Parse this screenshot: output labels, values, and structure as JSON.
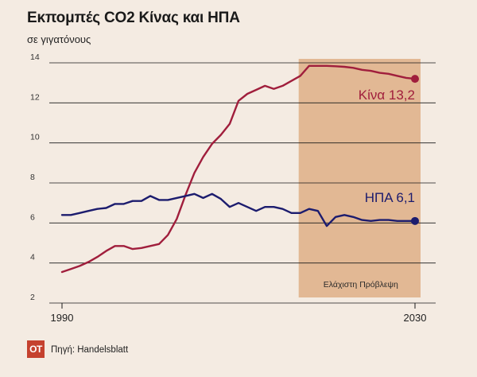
{
  "title": "Εκπομπές CO2 Κίνας και ΗΠΑ",
  "subtitle": "σε γιγατόνους",
  "source": "Πηγή: Handelsblatt",
  "logo": "ΟΤ",
  "colors": {
    "china": "#a01e3c",
    "usa": "#1c1c6e",
    "forecast_band": "#e2b894",
    "grid": "#1a1a1a"
  },
  "chart_data": {
    "type": "line",
    "ylim": [
      2,
      14
    ],
    "yticks": [
      2,
      4,
      6,
      8,
      10,
      12,
      14
    ],
    "xlim": [
      1990,
      2030
    ],
    "xtick_labels": [
      "1990",
      "2030"
    ],
    "forecast_label": "Ελάχιστη Πρόβλεψη",
    "forecast_range": [
      2017,
      2030
    ],
    "series": [
      {
        "name": "Κίνα",
        "end_label": "Κίνα 13,2",
        "color": "#a01e3c",
        "x": [
          1990,
          1991,
          1992,
          1993,
          1994,
          1995,
          1996,
          1997,
          1998,
          1999,
          2000,
          2001,
          2002,
          2003,
          2004,
          2005,
          2006,
          2007,
          2008,
          2009,
          2010,
          2011,
          2012,
          2013,
          2014,
          2015,
          2016,
          2017,
          2018,
          2019,
          2020,
          2021,
          2022,
          2023,
          2024,
          2025,
          2026,
          2027,
          2028,
          2029,
          2030
        ],
        "values": [
          3.55,
          3.7,
          3.85,
          4.05,
          4.3,
          4.6,
          4.85,
          4.85,
          4.7,
          4.75,
          4.85,
          4.95,
          5.4,
          6.2,
          7.4,
          8.5,
          9.3,
          9.95,
          10.4,
          10.95,
          12.1,
          12.45,
          12.65,
          12.85,
          12.7,
          12.85,
          13.1,
          13.35,
          13.85,
          13.85,
          13.85,
          13.83,
          13.8,
          13.75,
          13.65,
          13.6,
          13.5,
          13.45,
          13.35,
          13.25,
          13.2
        ]
      },
      {
        "name": "ΗΠΑ",
        "end_label": "ΗΠΑ 6,1",
        "color": "#1c1c6e",
        "x": [
          1990,
          1991,
          1992,
          1993,
          1994,
          1995,
          1996,
          1997,
          1998,
          1999,
          2000,
          2001,
          2002,
          2003,
          2004,
          2005,
          2006,
          2007,
          2008,
          2009,
          2010,
          2011,
          2012,
          2013,
          2014,
          2015,
          2016,
          2017,
          2018,
          2019,
          2020,
          2021,
          2022,
          2023,
          2024,
          2025,
          2026,
          2027,
          2028,
          2029,
          2030
        ],
        "values": [
          6.4,
          6.4,
          6.5,
          6.6,
          6.7,
          6.75,
          6.95,
          6.95,
          7.1,
          7.1,
          7.35,
          7.15,
          7.15,
          7.25,
          7.35,
          7.45,
          7.25,
          7.45,
          7.2,
          6.8,
          7.0,
          6.8,
          6.6,
          6.8,
          6.8,
          6.7,
          6.5,
          6.5,
          6.7,
          6.6,
          5.85,
          6.3,
          6.4,
          6.3,
          6.15,
          6.1,
          6.15,
          6.15,
          6.1,
          6.1,
          6.1
        ]
      }
    ]
  }
}
